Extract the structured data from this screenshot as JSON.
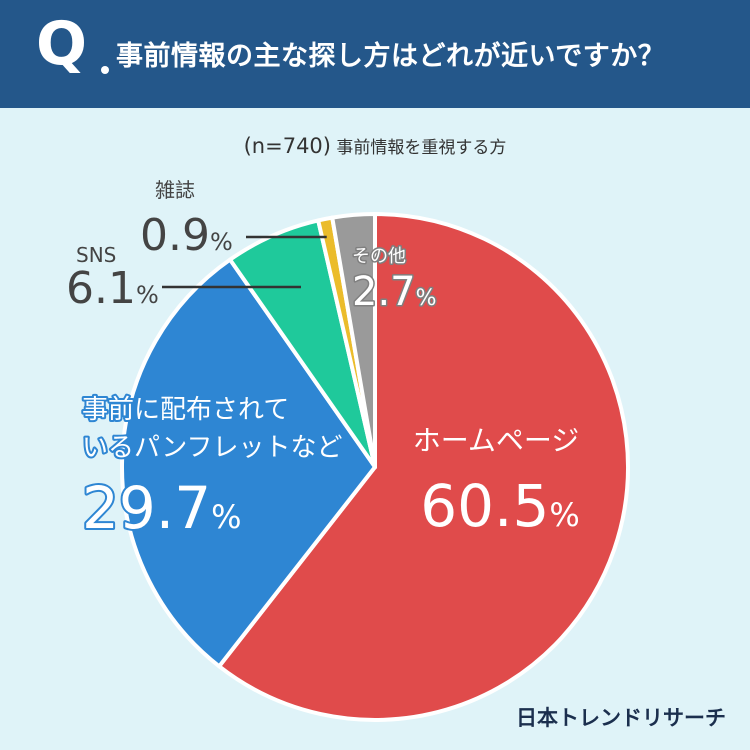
{
  "header": {
    "q_mark": "Q",
    "question": "事前情報の主な探し方はどれが近いですか？"
  },
  "subtitle": {
    "n": "(n=740)",
    "text": "事前情報を重視する方"
  },
  "chart_data": {
    "type": "pie",
    "start": "top",
    "direction": "clockwise",
    "slices": [
      {
        "name": "ホームページ",
        "value": 60.5,
        "color": "#e04b4b",
        "label_color": "#ffffff"
      },
      {
        "name": "事前に配布されていたパンフレットなど",
        "label_lines": [
          "事前に配布されて",
          "いるパンフレットなど"
        ],
        "value": 29.7,
        "color": "#2e86d3",
        "label_color": "#ffffff"
      },
      {
        "name": "SNS",
        "value": 6.1,
        "color": "#1fc99b",
        "label_color": "#444444"
      },
      {
        "name": "雑誌",
        "value": 0.9,
        "color": "#ebbc2b",
        "label_color": "#444444"
      },
      {
        "name": "その他",
        "value": 2.7,
        "color": "#9a9a9a",
        "label_color": "#ffffff"
      }
    ],
    "unit": "%"
  },
  "brand": "日本トレンドリサーチ"
}
